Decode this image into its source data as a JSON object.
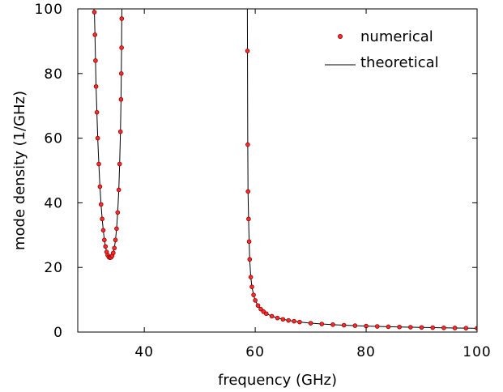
{
  "chart_data": {
    "type": "line",
    "title": "",
    "xlabel": "frequency (GHz)",
    "ylabel": "mode density (1/GHz)",
    "xlim": [
      28,
      100
    ],
    "ylim": [
      0,
      100
    ],
    "x_ticks": [
      40,
      60,
      80,
      100
    ],
    "y_ticks": [
      0,
      20,
      40,
      60,
      80,
      100
    ],
    "grid": false,
    "legend_position": "top-right",
    "series": [
      {
        "name": "numerical",
        "style": "markers",
        "color": "#ff2a2a",
        "edge_color": "#8b0000",
        "segments": [
          {
            "x": [
              31.0,
              31.1,
              31.2,
              31.3,
              31.45,
              31.6,
              31.8,
              32.0,
              32.2,
              32.4,
              32.6,
              32.8,
              33.0,
              33.2,
              33.4,
              33.6,
              33.8,
              34.0,
              34.2,
              34.4,
              34.6,
              34.8,
              35.0,
              35.2,
              35.4,
              35.55,
              35.7,
              35.8,
              35.85,
              35.9,
              35.93
            ],
            "y": [
              99.0,
              92.0,
              84.0,
              76.0,
              68.0,
              60.0,
              52.0,
              45.0,
              39.5,
              35.0,
              31.5,
              28.5,
              26.5,
              24.8,
              23.8,
              23.2,
              23.0,
              23.1,
              23.6,
              24.5,
              26.0,
              28.5,
              32.0,
              37.0,
              44.0,
              52.0,
              62.0,
              72.0,
              80.0,
              88.0,
              97.0
            ]
          },
          {
            "x": [
              58.6,
              58.65,
              58.7,
              58.8,
              58.9,
              59.0,
              59.2,
              59.4,
              59.7,
              60.0,
              60.5,
              61.0,
              61.5,
              62.0,
              63.0,
              64.0,
              65.0,
              66.0,
              67.0,
              68.0,
              70.0,
              72.0,
              74.0,
              76.0,
              78.0,
              80.0,
              82.0,
              84.0,
              86.0,
              88.0,
              90.0,
              92.0,
              94.0,
              96.0,
              98.0,
              100.0
            ],
            "y": [
              87.0,
              58.0,
              43.5,
              35.0,
              28.0,
              22.5,
              17.0,
              14.0,
              11.5,
              9.8,
              8.2,
              7.1,
              6.3,
              5.7,
              4.9,
              4.35,
              3.95,
              3.6,
              3.35,
              3.1,
              2.75,
              2.5,
              2.3,
              2.12,
              1.98,
              1.86,
              1.75,
              1.65,
              1.57,
              1.5,
              1.43,
              1.37,
              1.31,
              1.26,
              1.21,
              1.17
            ]
          }
        ]
      },
      {
        "name": "theoretical",
        "style": "line",
        "color": "#000000",
        "segments": [
          {
            "x": [
              30.9,
              31.0,
              31.1,
              31.2,
              31.3,
              31.45,
              31.6,
              31.8,
              32.0,
              32.2,
              32.4,
              32.6,
              32.8,
              33.0,
              33.2,
              33.4,
              33.6,
              33.8,
              34.0,
              34.2,
              34.4,
              34.6,
              34.8,
              35.0,
              35.2,
              35.4,
              35.55,
              35.7,
              35.8,
              35.85,
              35.9,
              35.93,
              35.96
            ],
            "y": [
              100,
              99.0,
              92.0,
              84.0,
              76.0,
              68.0,
              60.0,
              52.0,
              45.0,
              39.5,
              35.0,
              31.5,
              28.5,
              26.5,
              24.8,
              23.8,
              23.2,
              23.0,
              23.1,
              23.6,
              24.5,
              26.0,
              28.5,
              32.0,
              37.0,
              44.0,
              52.0,
              62.0,
              72.0,
              80.0,
              88.0,
              97.0,
              100
            ]
          },
          {
            "x": [
              58.58,
              58.6,
              58.65,
              58.7,
              58.8,
              58.9,
              59.0,
              59.2,
              59.4,
              59.7,
              60.0,
              60.5,
              61.0,
              61.5,
              62.0,
              63.0,
              64.0,
              65.0,
              66.0,
              67.0,
              68.0,
              70.0,
              72.0,
              74.0,
              76.0,
              78.0,
              80.0,
              82.0,
              84.0,
              86.0,
              88.0,
              90.0,
              92.0,
              94.0,
              96.0,
              98.0,
              100.0
            ],
            "y": [
              100,
              87.0,
              58.0,
              43.5,
              35.0,
              28.0,
              22.5,
              17.0,
              14.0,
              11.5,
              9.8,
              8.2,
              7.1,
              6.3,
              5.7,
              4.9,
              4.35,
              3.95,
              3.6,
              3.35,
              3.1,
              2.75,
              2.5,
              2.3,
              2.12,
              1.98,
              1.86,
              1.75,
              1.65,
              1.57,
              1.5,
              1.43,
              1.37,
              1.31,
              1.26,
              1.21,
              1.17
            ]
          }
        ]
      }
    ]
  }
}
